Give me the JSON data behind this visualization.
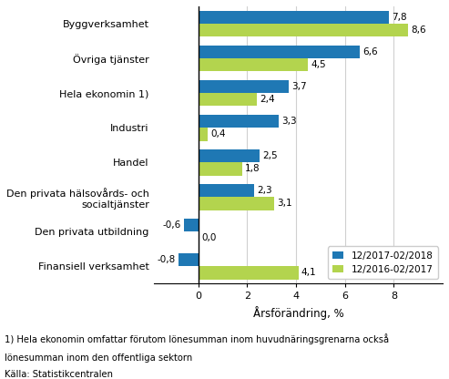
{
  "categories": [
    "Byggverksamhet",
    "Övriga tjänster",
    "Hela ekonomin 1)",
    "Industri",
    "Handel",
    "Den privata hälsovårds- och\nsocialtjänster",
    "Den privata utbildning",
    "Finansiell verksamhet"
  ],
  "series1_label": "12/2017-02/2018",
  "series2_label": "12/2016-02/2017",
  "series1_values": [
    7.8,
    6.6,
    3.7,
    3.3,
    2.5,
    2.3,
    -0.6,
    -0.8
  ],
  "series2_values": [
    8.6,
    4.5,
    2.4,
    0.4,
    1.8,
    3.1,
    0.0,
    4.1
  ],
  "color1": "#1f78b4",
  "color2": "#b3d44e",
  "xlabel": "Årsförändring, %",
  "xlim": [
    -1.8,
    10.0
  ],
  "xticks": [
    0,
    2,
    4,
    6,
    8
  ],
  "footnote1": "1) Hela ekonomin omfattar förutom lönesumman inom huvudnäringsgrenarna också",
  "footnote2": "lönesumman inom den offentliga sektorn",
  "footnote3": "Källa: Statistikcentralen",
  "bar_height": 0.38,
  "bg_color": "#ffffff"
}
